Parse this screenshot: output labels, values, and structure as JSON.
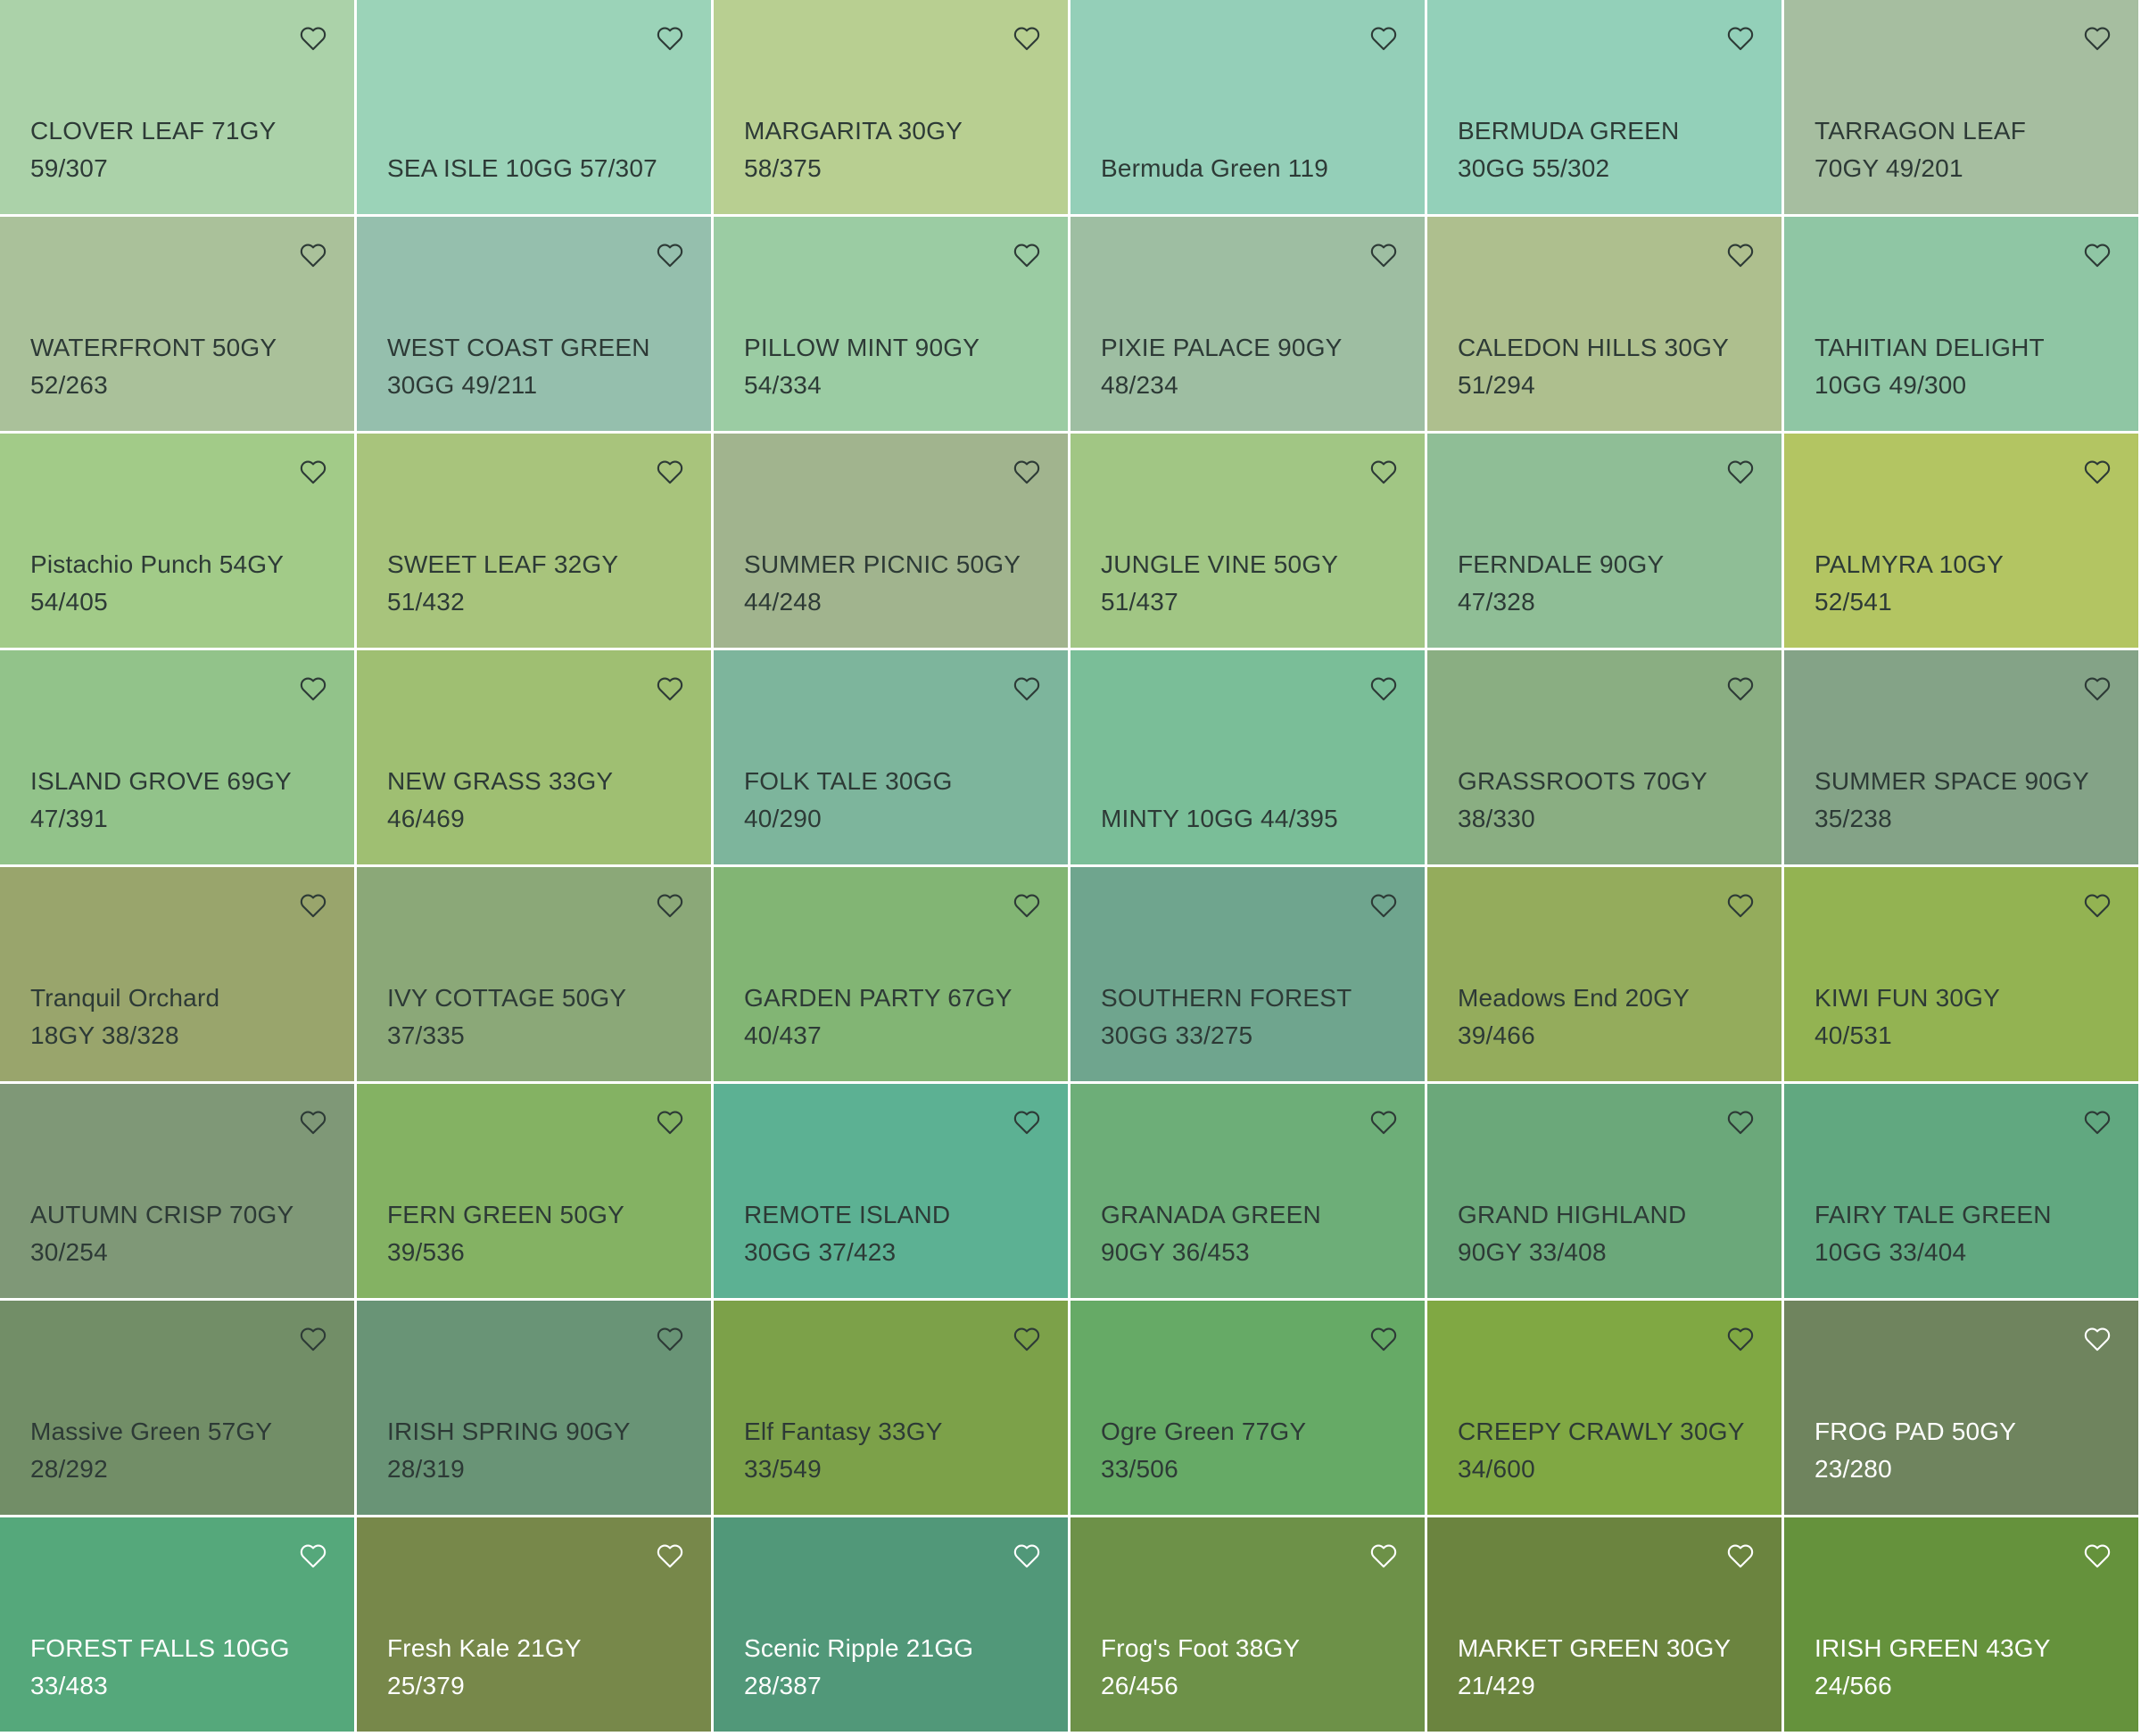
{
  "swatches": [
    {
      "line1": "CLOVER LEAF 71GY",
      "line2": "59/307",
      "color": "#abd2a9",
      "text": "dark"
    },
    {
      "line1": "",
      "line2": "SEA ISLE 10GG 57/307",
      "color": "#9bd3b8",
      "text": "dark"
    },
    {
      "line1": "MARGARITA 30GY",
      "line2": "58/375",
      "color": "#b8cf91",
      "text": "dark"
    },
    {
      "line1": "",
      "line2": "Bermuda Green 119",
      "color": "#94cfb8",
      "text": "dark"
    },
    {
      "line1": "BERMUDA GREEN",
      "line2": "30GG 55/302",
      "color": "#93d0b9",
      "text": "dark"
    },
    {
      "line1": "TARRAGON LEAF",
      "line2": "70GY 49/201",
      "color": "#a6bea0",
      "text": "dark"
    },
    {
      "line1": "WATERFRONT 50GY",
      "line2": "52/263",
      "color": "#aac19a",
      "text": "dark"
    },
    {
      "line1": "WEST COAST GREEN",
      "line2": "30GG 49/211",
      "color": "#95bfad",
      "text": "dark"
    },
    {
      "line1": "PILLOW MINT 90GY",
      "line2": "54/334",
      "color": "#9bcca3",
      "text": "dark"
    },
    {
      "line1": "PIXIE PALACE 90GY",
      "line2": "48/234",
      "color": "#9ebea2",
      "text": "dark"
    },
    {
      "line1": "CALEDON HILLS 30GY",
      "line2": "51/294",
      "color": "#aebf8e",
      "text": "dark"
    },
    {
      "line1": "TAHITIAN DELIGHT",
      "line2": "10GG 49/300",
      "color": "#8fc6a4",
      "text": "dark"
    },
    {
      "line1": "Pistachio Punch 54GY",
      "line2": "54/405",
      "color": "#a2cb88",
      "text": "dark"
    },
    {
      "line1": "SWEET LEAF 32GY",
      "line2": "51/432",
      "color": "#a8c47c",
      "text": "dark"
    },
    {
      "line1": "SUMMER PICNIC 50GY",
      "line2": "44/248",
      "color": "#a1b48e",
      "text": "dark"
    },
    {
      "line1": "JUNGLE VINE 50GY",
      "line2": "51/437",
      "color": "#a1c684",
      "text": "dark"
    },
    {
      "line1": "FERNDALE 90GY",
      "line2": "47/328",
      "color": "#8fbe96",
      "text": "dark"
    },
    {
      "line1": "PALMYRA 10GY",
      "line2": "52/541",
      "color": "#b3c562",
      "text": "dark"
    },
    {
      "line1": "ISLAND GROVE 69GY",
      "line2": "47/391",
      "color": "#92c38a",
      "text": "dark"
    },
    {
      "line1": "NEW GRASS 33GY",
      "line2": "46/469",
      "color": "#9fbf72",
      "text": "dark"
    },
    {
      "line1": "FOLK TALE 30GG",
      "line2": "40/290",
      "color": "#7db59c",
      "text": "dark"
    },
    {
      "line1": "",
      "line2": "MINTY 10GG 44/395",
      "color": "#7abe98",
      "text": "dark"
    },
    {
      "line1": "GRASSROOTS 70GY",
      "line2": "38/330",
      "color": "#8aae82",
      "text": "dark"
    },
    {
      "line1": "SUMMER SPACE 90GY",
      "line2": "35/238",
      "color": "#84a387",
      "text": "dark"
    },
    {
      "line1": "Tranquil Orchard",
      "line2": "18GY 38/328",
      "color": "#99a56c",
      "text": "dark"
    },
    {
      "line1": "IVY COTTAGE 50GY",
      "line2": "37/335",
      "color": "#8ba878",
      "text": "dark"
    },
    {
      "line1": "GARDEN PARTY 67GY",
      "line2": "40/437",
      "color": "#82b574",
      "text": "dark"
    },
    {
      "line1": "SOUTHERN FOREST",
      "line2": "30GG 33/275",
      "color": "#6fa58e",
      "text": "dark"
    },
    {
      "line1": "Meadows End 20GY",
      "line2": "39/466",
      "color": "#94ac5c",
      "text": "dark"
    },
    {
      "line1": "KIWI FUN 30GY",
      "line2": "40/531",
      "color": "#93b352",
      "text": "dark"
    },
    {
      "line1": "AUTUMN CRISP 70GY",
      "line2": "30/254",
      "color": "#7f9877",
      "text": "dark"
    },
    {
      "line1": "FERN GREEN 50GY",
      "line2": "39/536",
      "color": "#84b263",
      "text": "dark"
    },
    {
      "line1": "REMOTE ISLAND",
      "line2": "30GG 37/423",
      "color": "#5cb193",
      "text": "dark"
    },
    {
      "line1": "GRANADA GREEN",
      "line2": "90GY 36/453",
      "color": "#6dae78",
      "text": "dark"
    },
    {
      "line1": "GRAND HIGHLAND",
      "line2": "90GY 33/408",
      "color": "#6ba87a",
      "text": "dark"
    },
    {
      "line1": "FAIRY TALE GREEN",
      "line2": "10GG 33/404",
      "color": "#61a880",
      "text": "dark"
    },
    {
      "line1": "Massive Green 57GY",
      "line2": "28/292",
      "color": "#728e67",
      "text": "dark"
    },
    {
      "line1": "IRISH SPRING 90GY",
      "line2": "28/319",
      "color": "#699476",
      "text": "dark"
    },
    {
      "line1": "Elf Fantasy 33GY",
      "line2": "33/549",
      "color": "#7ca149",
      "text": "dark"
    },
    {
      "line1": "Ogre Green 77GY",
      "line2": "33/506",
      "color": "#66aa66",
      "text": "dark"
    },
    {
      "line1": "CREEPY CRAWLY 30GY",
      "line2": "34/600",
      "color": "#80a843",
      "text": "dark"
    },
    {
      "line1": "FROG PAD 50GY",
      "line2": "23/280",
      "color": "#6f845e",
      "text": "light"
    },
    {
      "line1": "FOREST FALLS 10GG",
      "line2": "33/483",
      "color": "#55a87b",
      "text": "light"
    },
    {
      "line1": "Fresh Kale 21GY",
      "line2": "25/379",
      "color": "#77884a",
      "text": "light"
    },
    {
      "line1": "Scenic Ripple 21GG",
      "line2": "28/387",
      "color": "#519879",
      "text": "light"
    },
    {
      "line1": "Frog's Foot 38GY",
      "line2": "26/456",
      "color": "#6d9148",
      "text": "light"
    },
    {
      "line1": "MARKET GREEN 30GY",
      "line2": "21/429",
      "color": "#6b843f",
      "text": "light"
    },
    {
      "line1": "IRISH GREEN 43GY",
      "line2": "24/566",
      "color": "#65923c",
      "text": "light"
    }
  ],
  "icons": {
    "favorite": "heart-outline-icon"
  }
}
